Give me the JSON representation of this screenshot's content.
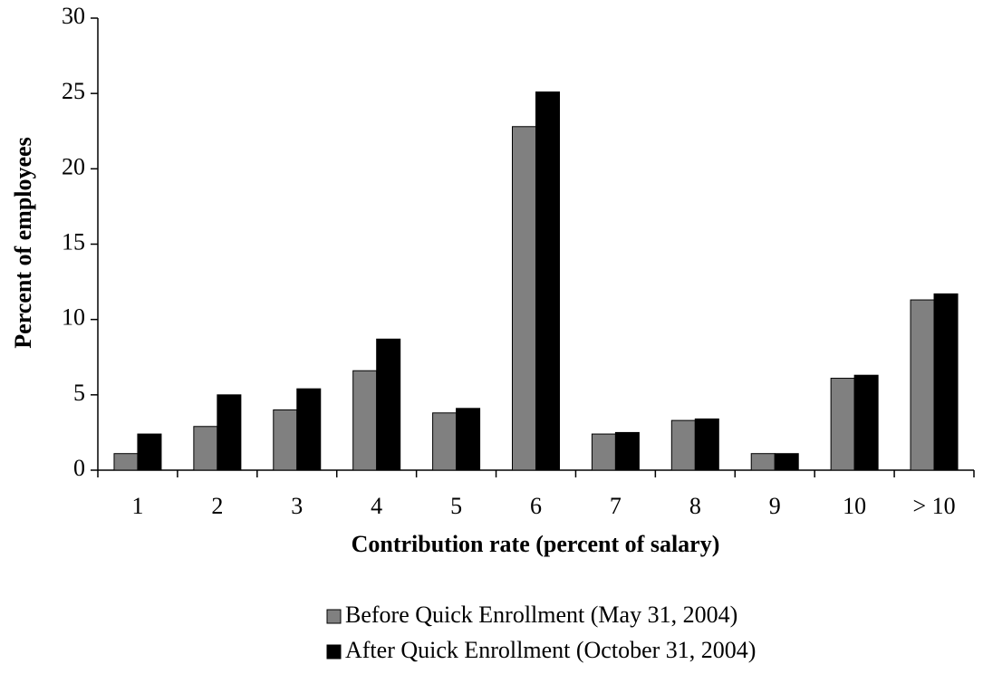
{
  "chart_data": {
    "type": "bar",
    "x_label": "Contribution rate (percent of salary)",
    "y_label": "Percent of employees",
    "categories": [
      "1",
      "2",
      "3",
      "4",
      "5",
      "6",
      "7",
      "8",
      "9",
      "10",
      "> 10"
    ],
    "series": [
      {
        "name": "Before Quick Enrollment (May 31, 2004)",
        "color": "#808080",
        "values": [
          1.1,
          2.9,
          4.0,
          6.6,
          3.8,
          22.8,
          2.4,
          3.3,
          1.1,
          6.1,
          11.3
        ]
      },
      {
        "name": "After Quick Enrollment (October 31, 2004)",
        "color": "#000000",
        "values": [
          2.4,
          5.0,
          5.4,
          8.7,
          4.1,
          25.1,
          2.5,
          3.4,
          1.1,
          6.3,
          11.7
        ]
      }
    ],
    "ylim": [
      0,
      30
    ],
    "yticks": [
      0,
      5,
      10,
      15,
      20,
      25,
      30
    ]
  }
}
